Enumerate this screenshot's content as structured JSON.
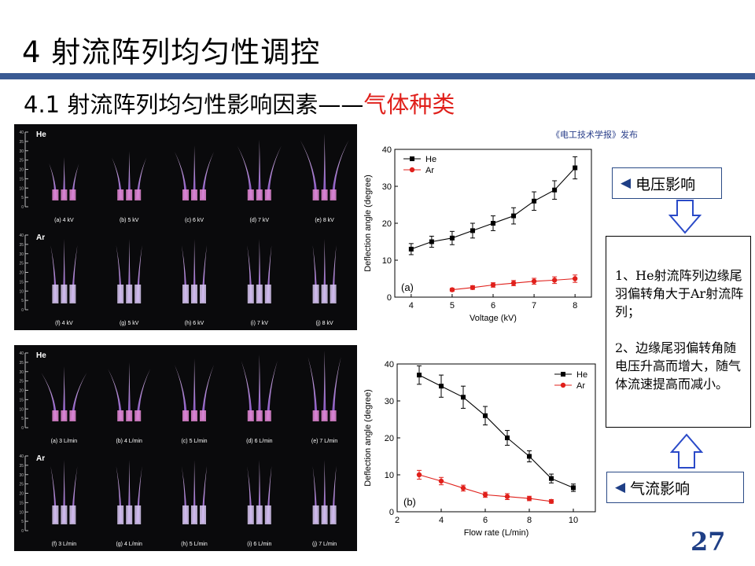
{
  "slide": {
    "title": "4  射流阵列均匀性调控",
    "subtitle_prefix": "4.1  射流阵列均匀性影响因素——",
    "subtitle_highlight": "气体种类",
    "source": "《电工技术学报》发布",
    "page_number": "27",
    "colors": {
      "accent": "#3a5a93",
      "highlight": "#e0201b",
      "he_series": "#000000",
      "ar_series": "#e0201b"
    }
  },
  "buttons": {
    "voltage": "电压影响",
    "flow": "气流影响",
    "arrow_icon": "left-triangle"
  },
  "note": {
    "point1": "1、He射流阵列边缘尾羽偏转角大于Ar射流阵列；",
    "point2": "2、边缘尾羽偏转角随电压升高而增大，随气体流速提高而减小。"
  },
  "photos": {
    "voltage": {
      "he_label": "He",
      "ar_label": "Ar",
      "he_captions": [
        "(a) 4 kV",
        "(b) 5 kV",
        "(c) 6 kV",
        "(d) 7 kV",
        "(e) 8 kV"
      ],
      "ar_captions": [
        "(f) 4 kV",
        "(g) 5 kV",
        "(h) 6 kV",
        "(i) 7 kV",
        "(j) 8 kV"
      ],
      "ruler_ticks": [
        "40",
        "35",
        "30",
        "25",
        "20",
        "15",
        "10",
        "5",
        "0"
      ]
    },
    "flow": {
      "he_label": "He",
      "ar_label": "Ar",
      "he_captions": [
        "(a) 3 L/min",
        "(b) 4 L/min",
        "(c) 5 L/min",
        "(d) 6 L/min",
        "(e) 7 L/min"
      ],
      "ar_captions": [
        "(f) 3 L/min",
        "(g) 4 L/min",
        "(h) 5 L/min",
        "(i) 6 L/min",
        "(j) 7 L/min"
      ],
      "ruler_ticks": [
        "40",
        "35",
        "30",
        "25",
        "20",
        "15",
        "10",
        "5",
        "0"
      ]
    }
  },
  "chart_data": [
    {
      "type": "line",
      "panel_label": "(a)",
      "xlabel": "Voltage (kV)",
      "ylabel": "Deflection angle (degree)",
      "xlim": [
        3.6,
        8.4
      ],
      "ylim": [
        0,
        40
      ],
      "xticks": [
        4,
        5,
        6,
        7,
        8
      ],
      "yticks": [
        0,
        10,
        20,
        30,
        40
      ],
      "legend_position": "top-left",
      "series": [
        {
          "name": "He",
          "marker": "square",
          "color": "#000000",
          "x": [
            4,
            4.5,
            5,
            5.5,
            6,
            6.5,
            7,
            7.5,
            8
          ],
          "y": [
            13,
            15,
            16,
            18,
            20,
            22,
            26,
            29,
            35
          ],
          "err": [
            1.5,
            1.5,
            1.8,
            2,
            2,
            2.2,
            2.5,
            2.5,
            3
          ]
        },
        {
          "name": "Ar",
          "marker": "circle",
          "color": "#e0201b",
          "x": [
            5,
            5.5,
            6,
            6.5,
            7,
            7.5,
            8
          ],
          "y": [
            2,
            2.6,
            3.3,
            3.8,
            4.3,
            4.6,
            5
          ],
          "err": [
            0.4,
            0.5,
            0.6,
            0.7,
            0.8,
            0.9,
            1
          ]
        }
      ]
    },
    {
      "type": "line",
      "panel_label": "(b)",
      "xlabel": "Flow rate (L/min)",
      "ylabel": "Deflection angle (degree)",
      "xlim": [
        2,
        11
      ],
      "ylim": [
        0,
        40
      ],
      "xticks": [
        2,
        4,
        6,
        8,
        10
      ],
      "yticks": [
        0,
        10,
        20,
        30,
        40
      ],
      "legend_position": "top-right",
      "series": [
        {
          "name": "He",
          "marker": "square",
          "color": "#000000",
          "x": [
            3,
            4,
            5,
            6,
            7,
            8,
            9,
            10
          ],
          "y": [
            37,
            34,
            31,
            26,
            20,
            15,
            9,
            6.5
          ],
          "err": [
            2.5,
            3,
            3,
            2.5,
            2,
            1.5,
            1.2,
            1
          ]
        },
        {
          "name": "Ar",
          "marker": "circle",
          "color": "#e0201b",
          "x": [
            3,
            4,
            5,
            6,
            7,
            8,
            9
          ],
          "y": [
            10,
            8.3,
            6.4,
            4.6,
            4.1,
            3.6,
            2.8
          ],
          "err": [
            1.2,
            1,
            0.8,
            0.7,
            0.8,
            0.6,
            0.5
          ]
        }
      ]
    }
  ]
}
